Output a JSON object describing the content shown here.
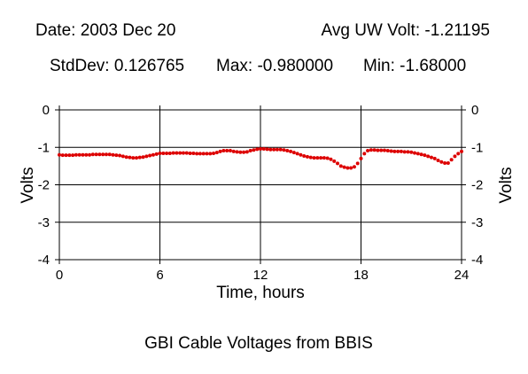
{
  "header": {
    "date": "Date: 2003 Dec 20",
    "avg": "Avg UW Volt: -1.21195",
    "stddev": "StdDev: 0.126765",
    "max": "Max: -0.980000",
    "min": "Min: -1.68000"
  },
  "chart_data": {
    "type": "scatter",
    "title": "GBI Cable Voltages from BBIS",
    "xlabel": "Time, hours",
    "ylabel": "Volts",
    "xlim": [
      0,
      24
    ],
    "ylim": [
      -4,
      0
    ],
    "xticks": [
      0,
      6,
      12,
      18,
      24
    ],
    "yticks": [
      0,
      -1,
      -2,
      -3,
      -4
    ],
    "xtick_labels": [
      "0",
      "6",
      "12",
      "18",
      "24"
    ],
    "ytick_labels": [
      "0",
      "-1",
      "-2",
      "-3",
      "-4"
    ],
    "grid": true,
    "colors": {
      "points": "#dd0000",
      "axes": "#000000"
    },
    "series": [
      {
        "x": [
          0.0,
          0.2,
          0.4,
          0.6,
          0.8,
          1.0,
          1.2,
          1.4,
          1.6,
          1.8,
          2.0,
          2.2,
          2.4,
          2.6,
          2.8,
          3.0,
          3.2,
          3.4,
          3.6,
          3.8,
          4.0,
          4.2,
          4.4,
          4.6,
          4.8,
          5.0,
          5.2,
          5.4,
          5.6,
          5.8,
          6.0,
          6.2,
          6.4,
          6.6,
          6.8,
          7.0,
          7.2,
          7.4,
          7.6,
          7.8,
          8.0,
          8.2,
          8.4,
          8.6,
          8.8,
          9.0,
          9.2,
          9.4,
          9.6,
          9.8,
          10.0,
          10.2,
          10.4,
          10.6,
          10.8,
          11.0,
          11.2,
          11.4,
          11.6,
          11.8,
          12.0,
          12.2,
          12.4,
          12.6,
          12.8,
          13.0,
          13.2,
          13.4,
          13.6,
          13.8,
          14.0,
          14.2,
          14.4,
          14.6,
          14.8,
          15.0,
          15.2,
          15.4,
          15.6,
          15.8,
          16.0,
          16.2,
          16.4,
          16.6,
          16.8,
          17.0,
          17.2,
          17.4,
          17.6,
          17.8,
          18.0,
          18.2,
          18.4,
          18.6,
          18.8,
          19.0,
          19.2,
          19.4,
          19.6,
          19.8,
          20.0,
          20.2,
          20.4,
          20.6,
          20.8,
          21.0,
          21.2,
          21.4,
          21.6,
          21.8,
          22.0,
          22.2,
          22.4,
          22.6,
          22.8,
          23.0,
          23.2,
          23.4,
          23.6,
          23.8,
          24.0
        ],
        "y": [
          -1.2,
          -1.21,
          -1.21,
          -1.21,
          -1.21,
          -1.2,
          -1.2,
          -1.2,
          -1.2,
          -1.2,
          -1.19,
          -1.19,
          -1.19,
          -1.19,
          -1.19,
          -1.19,
          -1.2,
          -1.21,
          -1.22,
          -1.24,
          -1.26,
          -1.27,
          -1.28,
          -1.28,
          -1.27,
          -1.26,
          -1.24,
          -1.22,
          -1.2,
          -1.18,
          -1.16,
          -1.16,
          -1.16,
          -1.16,
          -1.15,
          -1.15,
          -1.15,
          -1.15,
          -1.15,
          -1.16,
          -1.16,
          -1.17,
          -1.17,
          -1.17,
          -1.17,
          -1.17,
          -1.16,
          -1.14,
          -1.11,
          -1.09,
          -1.09,
          -1.09,
          -1.11,
          -1.12,
          -1.13,
          -1.13,
          -1.12,
          -1.09,
          -1.07,
          -1.05,
          -1.04,
          -1.04,
          -1.05,
          -1.06,
          -1.06,
          -1.06,
          -1.06,
          -1.07,
          -1.09,
          -1.11,
          -1.14,
          -1.17,
          -1.2,
          -1.23,
          -1.25,
          -1.27,
          -1.28,
          -1.28,
          -1.28,
          -1.28,
          -1.29,
          -1.32,
          -1.37,
          -1.43,
          -1.5,
          -1.53,
          -1.55,
          -1.55,
          -1.52,
          -1.43,
          -1.3,
          -1.17,
          -1.09,
          -1.07,
          -1.07,
          -1.08,
          -1.08,
          -1.08,
          -1.09,
          -1.1,
          -1.11,
          -1.11,
          -1.11,
          -1.12,
          -1.12,
          -1.13,
          -1.15,
          -1.17,
          -1.19,
          -1.21,
          -1.24,
          -1.27,
          -1.3,
          -1.35,
          -1.39,
          -1.42,
          -1.42,
          -1.33,
          -1.24,
          -1.17,
          -1.11
        ]
      }
    ]
  }
}
